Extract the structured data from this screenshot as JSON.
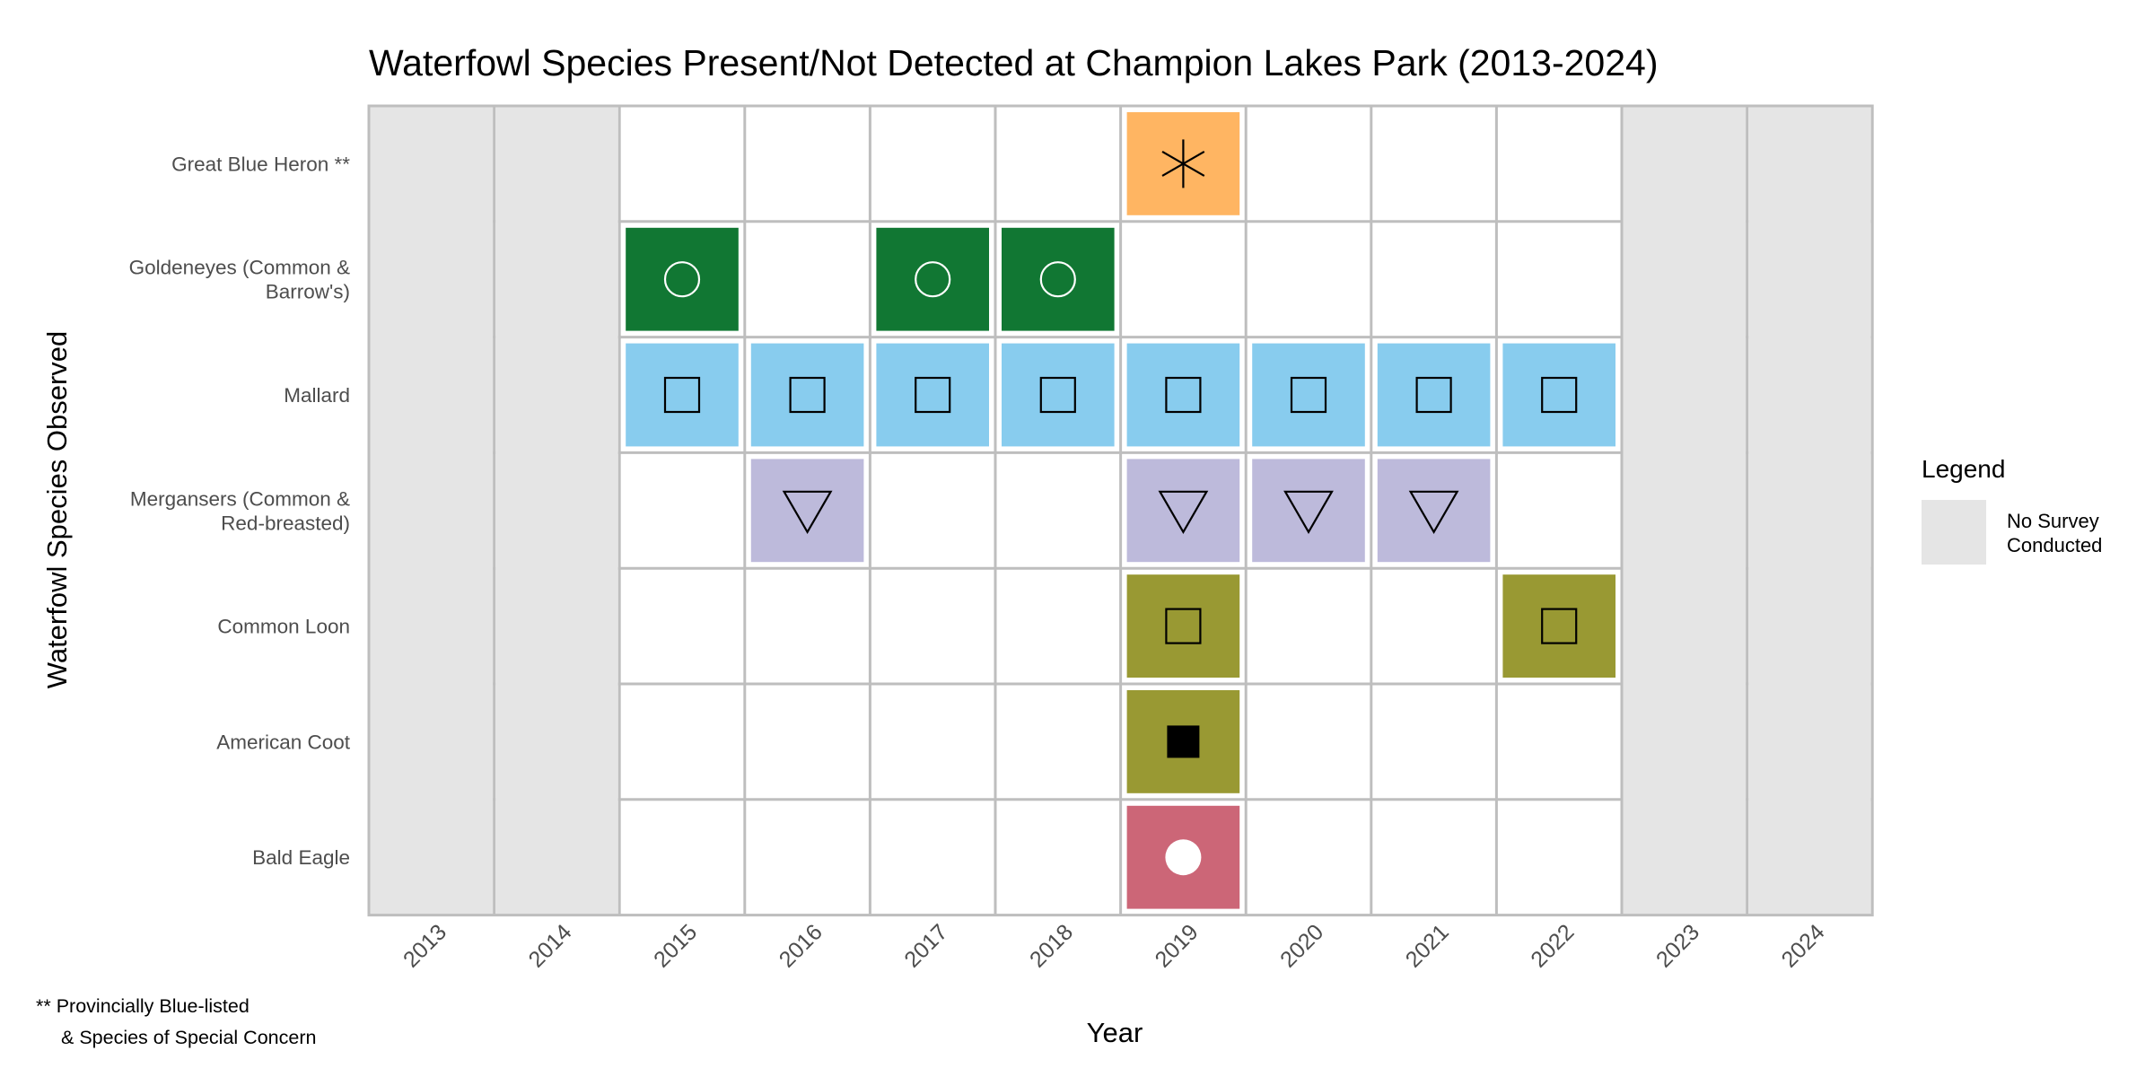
{
  "chart_data": {
    "type": "heatmap",
    "title": "Waterfowl Species Present/Not Detected at Champion Lakes Park (2013-2024)",
    "xlabel": "Year",
    "ylabel": "Waterfowl Species Observed",
    "years": [
      "2013",
      "2014",
      "2015",
      "2016",
      "2017",
      "2018",
      "2019",
      "2020",
      "2021",
      "2022",
      "2023",
      "2024"
    ],
    "no_survey_years": [
      "2013",
      "2014",
      "2023",
      "2024"
    ],
    "species": [
      {
        "label_lines": [
          "Great Blue Heron **"
        ],
        "color": "#FFB562",
        "marker": "asterisk",
        "present": [
          "2019"
        ]
      },
      {
        "label_lines": [
          "Goldeneyes (Common &",
          "Barrow's)"
        ],
        "color": "#117733",
        "marker": "circle-open-white",
        "present": [
          "2015",
          "2017",
          "2018"
        ]
      },
      {
        "label_lines": [
          "Mallard"
        ],
        "color": "#88CCEE",
        "marker": "square-open",
        "present": [
          "2015",
          "2016",
          "2017",
          "2018",
          "2019",
          "2020",
          "2021",
          "2022"
        ]
      },
      {
        "label_lines": [
          "Mergansers (Common &",
          "Red-breasted)"
        ],
        "color": "#BDBADB",
        "marker": "triangle-down-open",
        "present": [
          "2016",
          "2019",
          "2020",
          "2021"
        ]
      },
      {
        "label_lines": [
          "Common Loon"
        ],
        "color": "#999933",
        "marker": "square-open",
        "present": [
          "2019",
          "2022"
        ]
      },
      {
        "label_lines": [
          "American Coot"
        ],
        "color": "#999933",
        "marker": "square-filled",
        "present": [
          "2019"
        ]
      },
      {
        "label_lines": [
          "Bald Eagle"
        ],
        "color": "#CC6677",
        "marker": "circle-filled-white",
        "present": [
          "2019"
        ]
      }
    ],
    "legend": {
      "title": "Legend",
      "position": "right",
      "items": [
        {
          "label_lines": [
            "No Survey",
            "Conducted"
          ],
          "color": "#E5E5E5"
        }
      ]
    },
    "footnote_lines": [
      "** Provincially Blue-listed",
      "& Species of Special Concern"
    ],
    "colors": {
      "no_survey": "#E5E5E5",
      "grid": "#BEBEBE",
      "border": "#BEBEBE"
    }
  }
}
